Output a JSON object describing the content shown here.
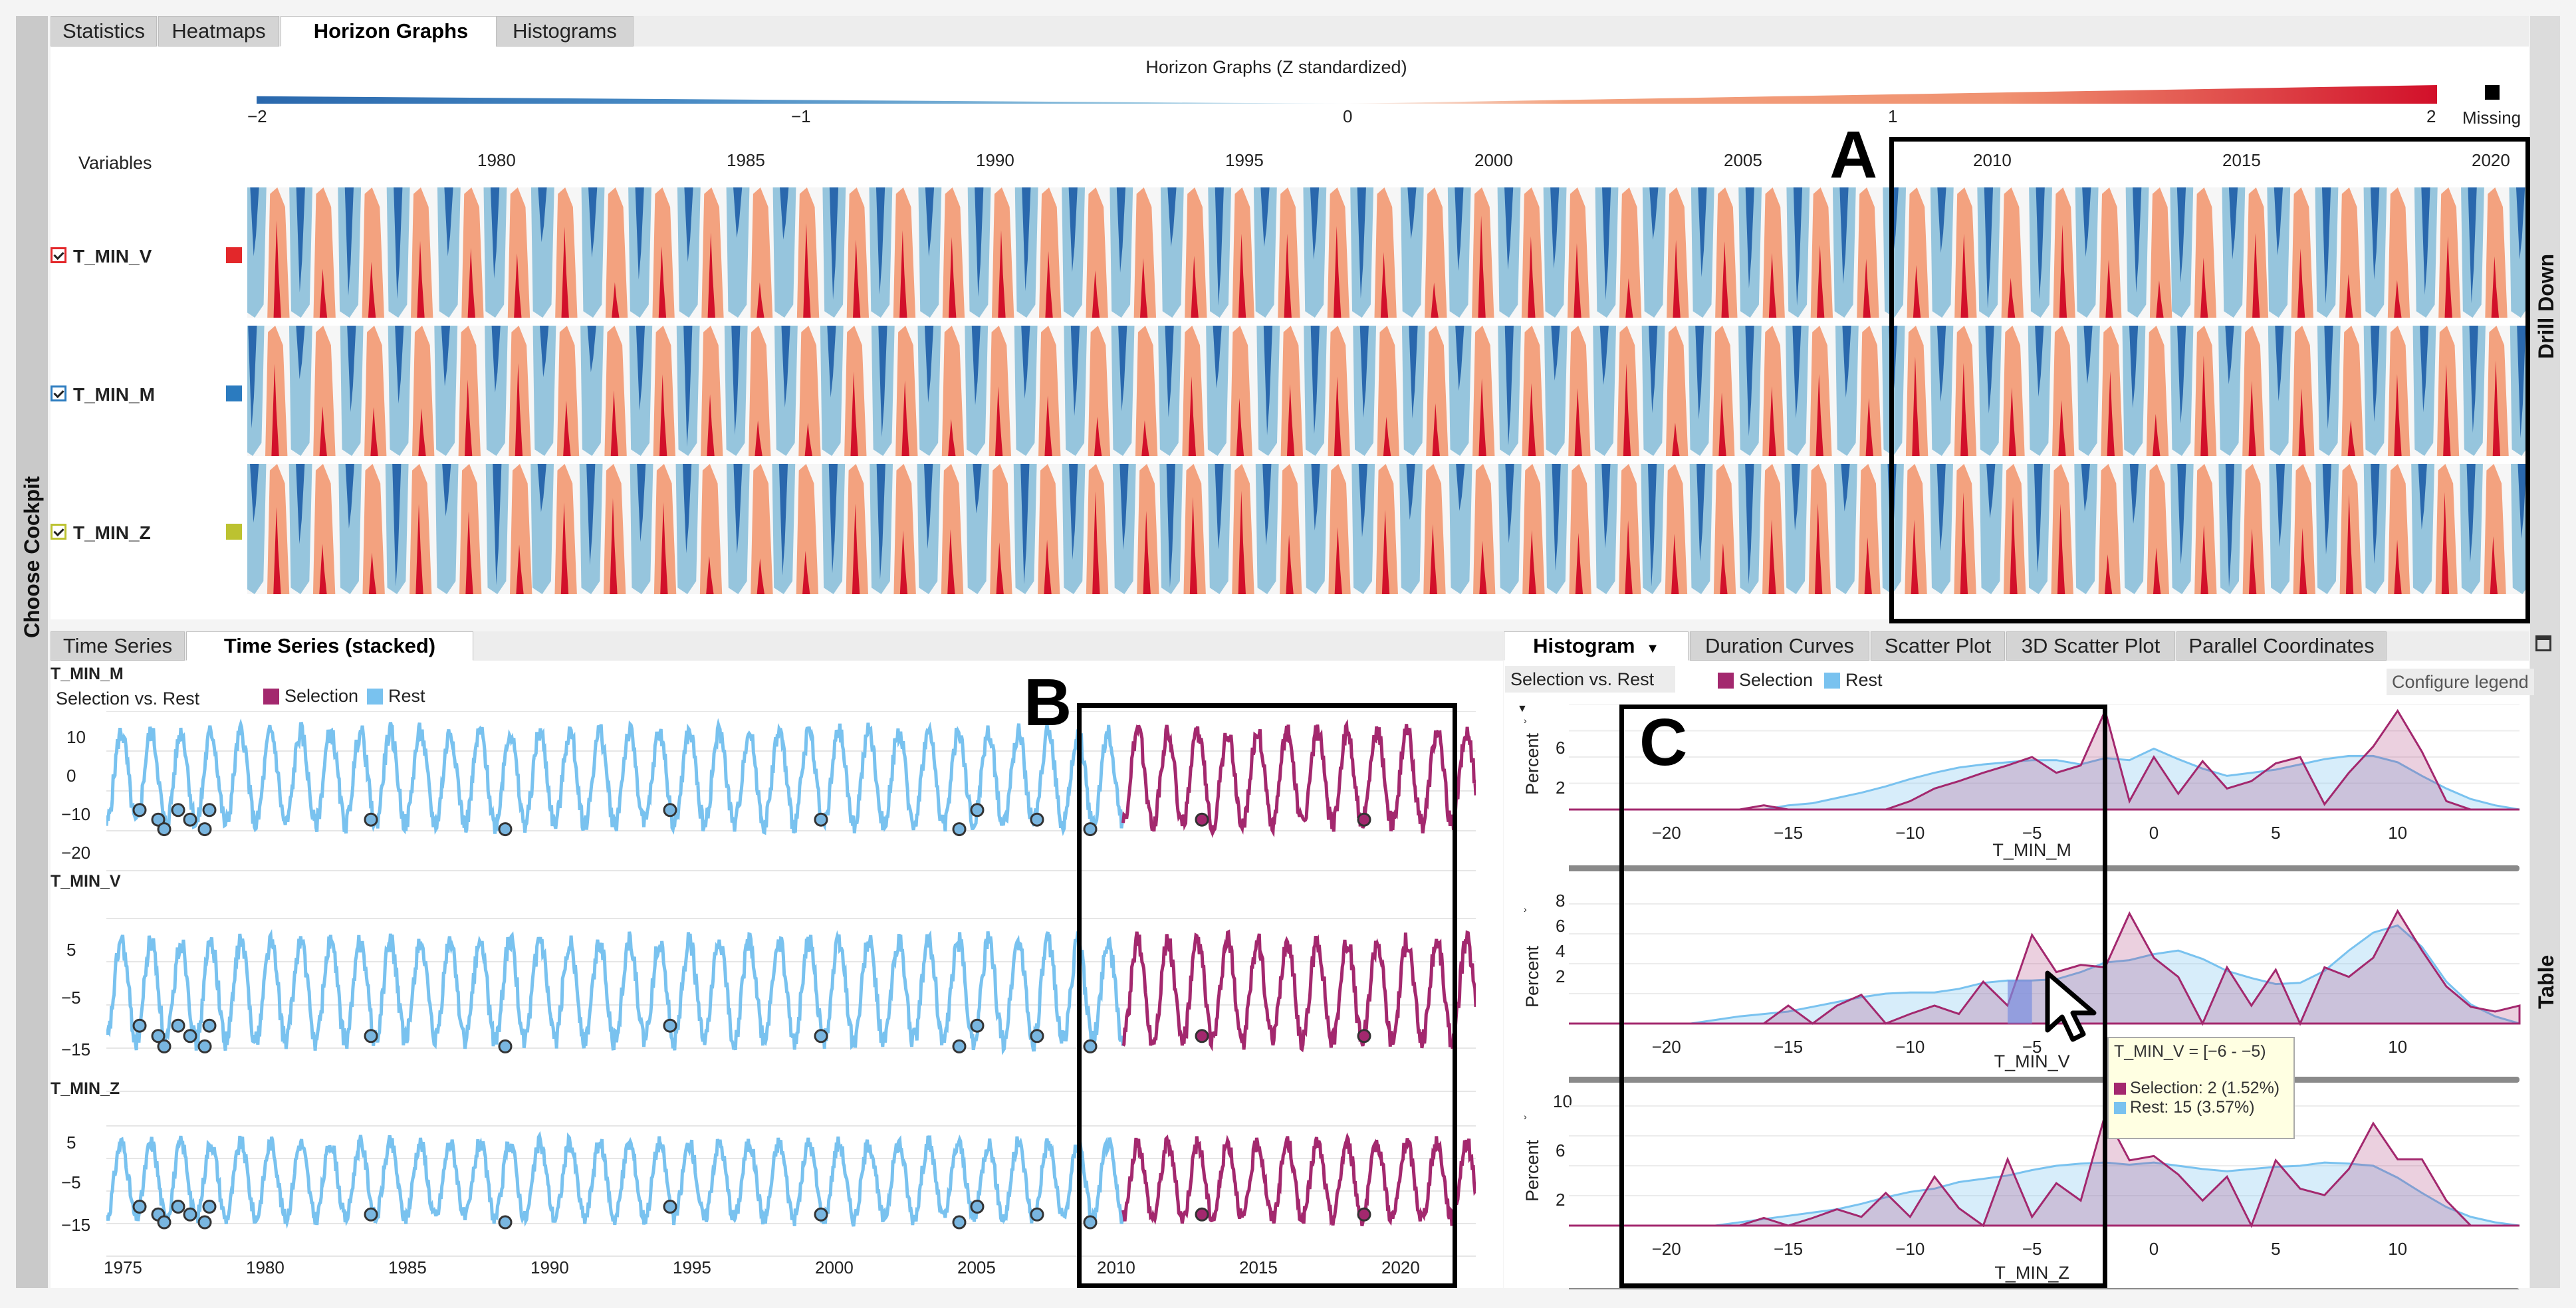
{
  "left_strip_label": "Choose Cockpit",
  "right_strip_top_label": "Drill Down",
  "right_strip_bottom_label": "Table",
  "top_tabs": [
    "Statistics",
    "Heatmaps",
    "Horizon Graphs",
    "Histograms"
  ],
  "horizon": {
    "title": "Horizon Graphs (Z standardized)",
    "scale_ticks": [
      "−2",
      "−1",
      "0",
      "1",
      "2"
    ],
    "missing_label": "Missing",
    "variables_header": "Variables",
    "years": [
      "1980",
      "1985",
      "1990",
      "1995",
      "2000",
      "2005",
      "2010",
      "2015",
      "2020"
    ],
    "rows": [
      {
        "name": "T_MIN_V",
        "color": "#e3272a"
      },
      {
        "name": "T_MIN_M",
        "color": "#2b7bbf"
      },
      {
        "name": "T_MIN_Z",
        "color": "#bcc230"
      }
    ],
    "colors": {
      "neg2": "#2a68ad",
      "neg1": "#96c5dd",
      "pos1": "#f3a27f",
      "pos2": "#d2102a",
      "bg": "#f6f6f6"
    }
  },
  "annotations": {
    "a": "A",
    "b": "B",
    "c": "C"
  },
  "ts": {
    "tabs": [
      "Time Series",
      "Time Series (stacked)"
    ],
    "legend_mode": "Selection vs. Rest",
    "legend_selection": "Selection",
    "legend_rest": "Rest",
    "colors": {
      "selection": "#a3286e",
      "rest": "#79c2ef"
    },
    "x_ticks": [
      "1975",
      "1980",
      "1985",
      "1990",
      "1995",
      "2000",
      "2005",
      "2010",
      "2015",
      "2020"
    ],
    "charts": [
      {
        "name": "T_MIN_M",
        "y_ticks": [
          "10",
          "0",
          "−10",
          "−20"
        ]
      },
      {
        "name": "T_MIN_V",
        "y_ticks": [
          "5",
          "−5",
          "−15"
        ]
      },
      {
        "name": "T_MIN_Z",
        "y_ticks": [
          "5",
          "−5",
          "−15"
        ]
      }
    ]
  },
  "hist": {
    "tabs": [
      "Histogram",
      "Duration Curves",
      "Scatter Plot",
      "3D Scatter Plot",
      "Parallel Coordinates"
    ],
    "dropdown": "Selection vs. Rest",
    "legend_selection": "Selection",
    "legend_rest": "Rest",
    "configure_legend": "Configure legend",
    "y_axis_label": "Percent",
    "x_ticks": [
      "−20",
      "−15",
      "−10",
      "−5",
      "0",
      "5",
      "10"
    ],
    "charts": [
      {
        "name": "T_MIN_M",
        "y_ticks": [
          "6",
          "2"
        ]
      },
      {
        "name": "T_MIN_V",
        "y_ticks": [
          "8",
          "6",
          "4",
          "2"
        ]
      },
      {
        "name": "T_MIN_Z",
        "y_ticks": [
          "10",
          "6",
          "2"
        ]
      }
    ],
    "tooltip": {
      "title": "T_MIN_V = [−6 - −5)",
      "selection": "Selection: 2 (1.52%)",
      "rest": "Rest: 15 (3.57%)"
    }
  },
  "chart_data": [
    {
      "type": "histogram",
      "title": "T_MIN_M",
      "x": [
        -24,
        -23,
        -22,
        -21,
        -20,
        -19,
        -18,
        -17,
        -16,
        -15,
        -14,
        -13,
        -12,
        -11,
        -10,
        -9,
        -8,
        -7,
        -6,
        -5,
        -4,
        -3,
        -2,
        -1,
        0,
        1,
        2,
        3,
        4,
        5,
        6,
        7,
        8,
        9,
        10,
        11,
        12,
        13,
        14,
        15
      ],
      "series": [
        {
          "name": "Selection",
          "values": [
            0,
            0,
            0,
            0,
            0,
            0,
            0,
            0,
            0.4,
            0,
            0,
            0,
            0,
            0,
            0.8,
            2,
            2.7,
            3.5,
            4.2,
            5,
            3.5,
            4.2,
            9.4,
            0.8,
            5,
            1.5,
            4.6,
            2,
            2.7,
            4.4,
            5,
            0.5,
            3.5,
            6,
            9.4,
            5.5,
            0.8,
            0,
            0,
            0
          ]
        },
        {
          "name": "Rest",
          "values": [
            0,
            0,
            0,
            0,
            0,
            0,
            0,
            0,
            0,
            0.4,
            0.6,
            1.1,
            1.6,
            2.2,
            2.9,
            3.5,
            4,
            4.3,
            4.5,
            4.7,
            4.7,
            4.3,
            4.9,
            4.7,
            5.8,
            4.8,
            3.9,
            3.2,
            3.5,
            3.8,
            4.3,
            4.8,
            5.1,
            5.1,
            4.5,
            3.2,
            2,
            1,
            0.4,
            0
          ]
        }
      ],
      "xlabel": "T_MIN_M",
      "ylabel": "Percent",
      "xlim": [
        -24,
        15
      ],
      "ylim": [
        0,
        10
      ]
    },
    {
      "type": "histogram",
      "title": "T_MIN_V",
      "x": [
        -24,
        -23,
        -22,
        -21,
        -20,
        -19,
        -18,
        -17,
        -16,
        -15,
        -14,
        -13,
        -12,
        -11,
        -10,
        -9,
        -8,
        -7,
        -6,
        -5,
        -4,
        -3,
        -2,
        -1,
        0,
        1,
        2,
        3,
        4,
        5,
        6,
        7,
        8,
        9,
        10,
        11,
        12,
        13,
        14,
        15
      ],
      "series": [
        {
          "name": "Selection",
          "values": [
            0,
            0,
            0,
            0,
            0,
            0,
            0,
            0,
            0,
            1.5,
            0,
            1.5,
            2.4,
            0,
            0.8,
            1.5,
            0.8,
            3.5,
            1.5,
            7.4,
            4.3,
            4.9,
            4.7,
            9.2,
            5.5,
            3.9,
            0,
            4.7,
            1.5,
            4.5,
            0,
            4.7,
            3.9,
            5.5,
            9.4,
            6.1,
            3.1,
            1.4,
            1,
            1.5
          ]
        },
        {
          "name": "Rest",
          "values": [
            0,
            0,
            0,
            0,
            0,
            0,
            0.3,
            0.6,
            0.8,
            1,
            1.4,
            1.8,
            2.2,
            2.5,
            2.6,
            2.6,
            2.9,
            3.4,
            3.6,
            3.6,
            3.7,
            4.3,
            5.1,
            5.3,
            5.8,
            6.1,
            5.4,
            4.4,
            3.8,
            3.3,
            3.4,
            4.4,
            6.1,
            7.6,
            8.2,
            6.4,
            3.5,
            1.6,
            0.6,
            0
          ]
        }
      ],
      "xlabel": "T_MIN_V",
      "ylabel": "Percent",
      "xlim": [
        -24,
        15
      ],
      "ylim": [
        0,
        10
      ]
    },
    {
      "type": "histogram",
      "title": "T_MIN_Z",
      "x": [
        -24,
        -23,
        -22,
        -21,
        -20,
        -19,
        -18,
        -17,
        -16,
        -15,
        -14,
        -13,
        -12,
        -11,
        -10,
        -9,
        -8,
        -7,
        -6,
        -5,
        -4,
        -3,
        -2,
        -1,
        0,
        1,
        2,
        3,
        4,
        5,
        6,
        7,
        8,
        9,
        10,
        11,
        12,
        13,
        14,
        15
      ],
      "series": [
        {
          "name": "Selection",
          "values": [
            0,
            0,
            0,
            0,
            0,
            0,
            0,
            0,
            0.7,
            0,
            0.7,
            1.5,
            0.8,
            3,
            0.8,
            4.5,
            1.6,
            0,
            6.1,
            0.8,
            3.9,
            2.3,
            10.2,
            6,
            6.4,
            4.7,
            2.3,
            4.5,
            0,
            6,
            3.4,
            2.8,
            5.2,
            9.4,
            6.1,
            6.1,
            2.3,
            0,
            0,
            0
          ]
        },
        {
          "name": "Rest",
          "values": [
            0,
            0,
            0,
            0,
            0,
            0,
            0,
            0.3,
            0.6,
            0.9,
            1.2,
            1.5,
            2,
            2.6,
            3.1,
            3.4,
            4,
            4.3,
            4.6,
            5.1,
            5.5,
            5.7,
            5.8,
            5.6,
            5.8,
            5.5,
            5.2,
            5,
            5.2,
            5.4,
            5.5,
            5.8,
            5.7,
            5.5,
            4.4,
            3,
            1.7,
            0.8,
            0.3,
            0
          ]
        }
      ],
      "xlabel": "T_MIN_Z",
      "ylabel": "Percent",
      "xlim": [
        -24,
        15
      ],
      "ylim": [
        0,
        11
      ]
    }
  ]
}
